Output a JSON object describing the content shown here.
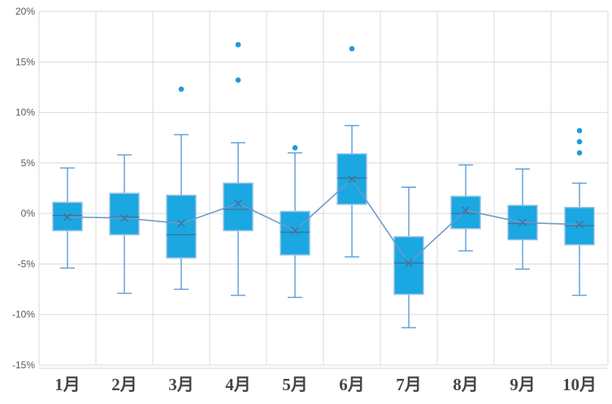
{
  "chart_data": {
    "type": "box",
    "title": "",
    "categories": [
      "1月",
      "2月",
      "3月",
      "4月",
      "5月",
      "6月",
      "7月",
      "8月",
      "9月",
      "10月"
    ],
    "unit": "percent",
    "y_axis": {
      "min": -15,
      "max": 20,
      "tick_labels": [
        "20%",
        "15%",
        "10%",
        "5%",
        "0%",
        "-5%",
        "-10%",
        "-15%"
      ],
      "tick_values": [
        20,
        15,
        10,
        5,
        0,
        -5,
        -10,
        -15
      ],
      "grid": true
    },
    "x_axis": {
      "grid": true
    },
    "boxes": [
      {
        "category": "1月",
        "whisker_low": -5.4,
        "q1": -1.7,
        "median": -0.2,
        "q3": 1.1,
        "whisker_high": 4.5,
        "mean": -0.35,
        "outliers": []
      },
      {
        "category": "2月",
        "whisker_low": -7.9,
        "q1": -2.1,
        "median": -0.35,
        "q3": 2.0,
        "whisker_high": 5.8,
        "mean": -0.45,
        "outliers": []
      },
      {
        "category": "3月",
        "whisker_low": -7.5,
        "q1": -4.4,
        "median": -2.1,
        "q3": 1.8,
        "whisker_high": 7.8,
        "mean": -1.0,
        "outliers": [
          12.3
        ]
      },
      {
        "category": "4月",
        "whisker_low": -8.1,
        "q1": -1.7,
        "median": 0.4,
        "q3": 3.0,
        "whisker_high": 7.0,
        "mean": 1.0,
        "outliers": [
          16.7,
          13.2
        ]
      },
      {
        "category": "5月",
        "whisker_low": -8.3,
        "q1": -4.1,
        "median": -1.85,
        "q3": 0.2,
        "whisker_high": 6.0,
        "mean": -1.7,
        "outliers": [
          6.5
        ]
      },
      {
        "category": "6月",
        "whisker_low": -4.3,
        "q1": 0.9,
        "median": 3.5,
        "q3": 5.9,
        "whisker_high": 8.7,
        "mean": 3.4,
        "outliers": [
          16.3
        ]
      },
      {
        "category": "7月",
        "whisker_low": -11.3,
        "q1": -8.0,
        "median": -4.9,
        "q3": -2.3,
        "whisker_high": 2.6,
        "mean": -4.9,
        "outliers": []
      },
      {
        "category": "8月",
        "whisker_low": -3.7,
        "q1": -1.5,
        "median": 0.0,
        "q3": 1.7,
        "whisker_high": 4.8,
        "mean": 0.3,
        "outliers": []
      },
      {
        "category": "9月",
        "whisker_low": -5.5,
        "q1": -2.6,
        "median": -1.0,
        "q3": 0.8,
        "whisker_high": 4.4,
        "mean": -0.9,
        "outliers": []
      },
      {
        "category": "10月",
        "whisker_low": -8.1,
        "q1": -3.1,
        "median": -1.2,
        "q3": 0.6,
        "whisker_high": 3.0,
        "mean": -1.1,
        "outliers": [
          8.2,
          7.1,
          6.0
        ]
      }
    ],
    "mean_line": {
      "visible": true,
      "connects": "mean"
    },
    "legend": null,
    "colors": {
      "box_fill": "#1BA7E1",
      "box_border": "#9DC3E6",
      "whisker": "#5B9BD5",
      "median": "#41719C",
      "mean_marker": "#41719C",
      "mean_line": "#6E9AC9",
      "outlier": "#2399DC",
      "gridline": "#D9D9D9",
      "axis_line": "#D6D6D6",
      "y_tick_text": "#595959",
      "x_label_text": "#474747",
      "background": "#FFFFFF"
    }
  }
}
